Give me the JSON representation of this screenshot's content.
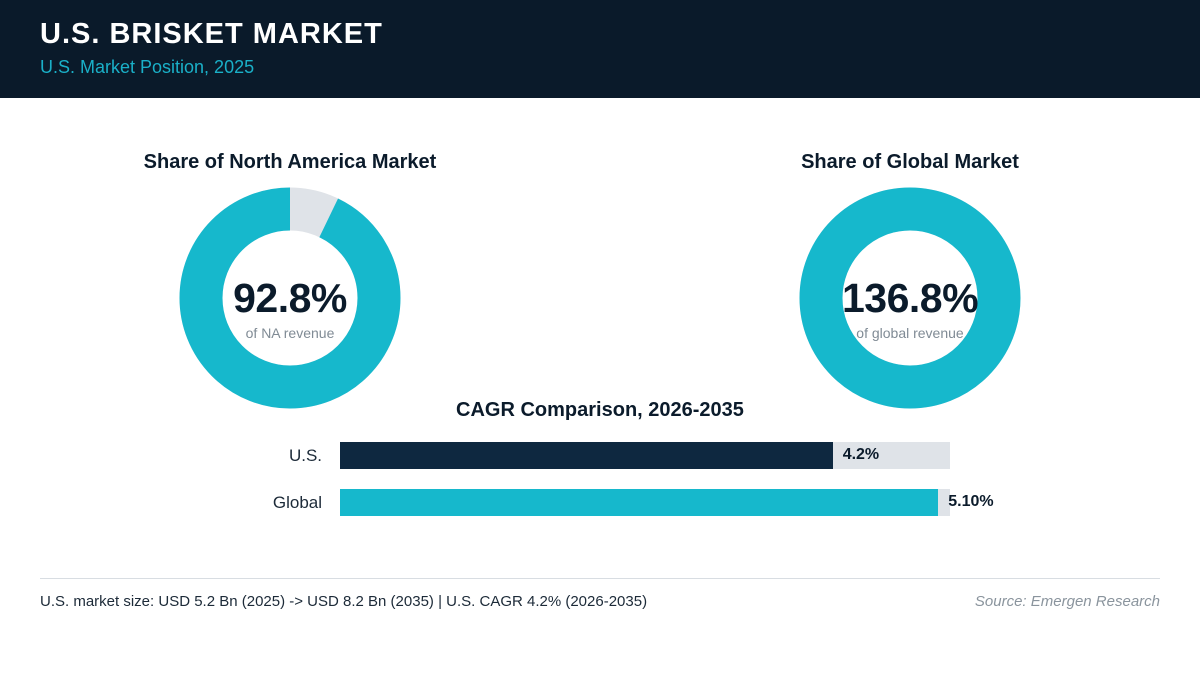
{
  "header": {
    "title": "U.S. BRISKET MARKET",
    "subtitle": "U.S. Market Position, 2025"
  },
  "colors": {
    "header_bg": "#0a1a2a",
    "accent": "#16b8cc",
    "navy": "#0e2840",
    "track": "#dfe3e8"
  },
  "chart_data": [
    {
      "type": "pie",
      "title": "Share of North America Market",
      "value_percent": 92.8,
      "value_label": "92.8%",
      "caption": "of NA revenue",
      "colors": [
        "#16b8cc",
        "#dfe3e8"
      ]
    },
    {
      "type": "pie",
      "title": "Share of Global Market",
      "value_percent": 136.8,
      "value_label": "136.8%",
      "caption": "of global revenue",
      "colors": [
        "#16b8cc",
        "#dfe3e8"
      ]
    },
    {
      "type": "bar",
      "orientation": "horizontal",
      "title": "CAGR Comparison, 2026-2035",
      "categories": [
        "U.S.",
        "Global"
      ],
      "values": [
        4.2,
        5.1
      ],
      "value_labels": [
        "4.2%",
        "5.10%"
      ],
      "xlim": [
        0,
        5.2
      ],
      "colors": [
        "#0e2840",
        "#16b8cc"
      ]
    }
  ],
  "footer": {
    "note": "U.S. market size: USD 5.2 Bn (2025) -> USD 8.2 Bn (2035)  |  U.S. CAGR 4.2% (2026-2035)",
    "source": "Source: Emergen Research"
  }
}
